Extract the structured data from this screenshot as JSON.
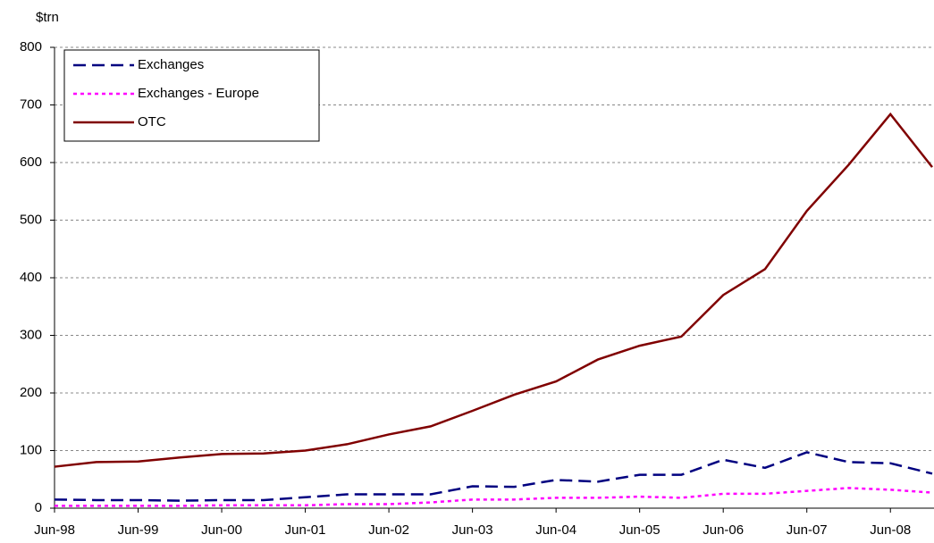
{
  "chart_data": {
    "type": "line",
    "y_label": "$trn",
    "categories": [
      "Jun-98",
      null,
      "Jun-99",
      null,
      "Jun-00",
      null,
      "Jun-01",
      null,
      "Jun-02",
      null,
      "Jun-03",
      null,
      "Jun-04",
      null,
      "Jun-05",
      null,
      "Jun-06",
      null,
      "Jun-07",
      null,
      "Jun-08",
      null
    ],
    "series": [
      {
        "name": "Exchanges",
        "color": "#000080",
        "dash": "dashed",
        "values": [
          15,
          14,
          14,
          13,
          14,
          14,
          19,
          24,
          24,
          24,
          38,
          37,
          49,
          46,
          58,
          58,
          84,
          70,
          97,
          80,
          78,
          60
        ]
      },
      {
        "name": "Exchanges - Europe",
        "color": "#ff00ff",
        "dash": "dotted",
        "values": [
          4,
          4,
          4,
          4,
          5,
          5,
          5,
          7,
          7,
          10,
          15,
          15,
          18,
          18,
          20,
          18,
          25,
          25,
          30,
          35,
          32,
          27
        ]
      },
      {
        "name": "OTC",
        "color": "#800000",
        "dash": "solid",
        "values": [
          72,
          80,
          81,
          88,
          94,
          95,
          100,
          111,
          128,
          142,
          169,
          197,
          220,
          258,
          282,
          298,
          370,
          415,
          516,
          596,
          684,
          592
        ]
      }
    ],
    "ylim": [
      0,
      800
    ],
    "yticks": [
      0,
      100,
      200,
      300,
      400,
      500,
      600,
      700,
      800
    ],
    "grid": true,
    "legend": "top-left"
  }
}
